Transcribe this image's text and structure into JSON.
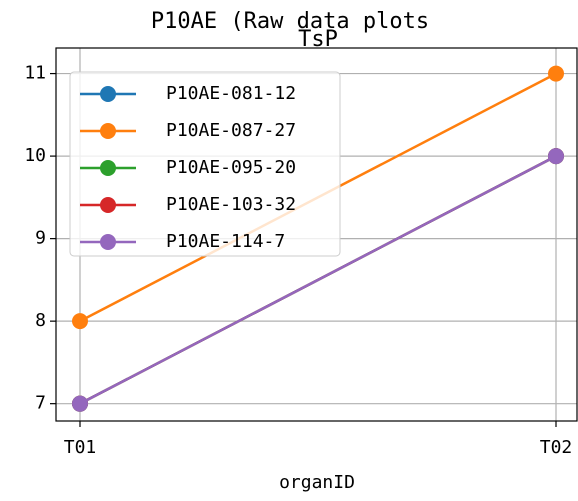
{
  "chart_data": {
    "type": "line",
    "title": "P10AE (Raw data plots",
    "subtitle": "TsP",
    "x_label": "organID",
    "categories": [
      "T01",
      "T02"
    ],
    "series": [
      {
        "name": "P10AE-081-12",
        "color": "#1f77b4",
        "values": [
          7,
          10
        ]
      },
      {
        "name": "P10AE-087-27",
        "color": "#ff7f0e",
        "values": [
          8,
          11
        ]
      },
      {
        "name": "P10AE-095-20",
        "color": "#2ca02c",
        "values": [
          7,
          10
        ]
      },
      {
        "name": "P10AE-103-32",
        "color": "#d62728",
        "values": [
          7,
          10
        ]
      },
      {
        "name": "P10AE-114-7",
        "color": "#9467bd",
        "values": [
          7,
          10
        ]
      }
    ],
    "ylim": [
      6.79,
      11.31
    ],
    "yticks": [
      7,
      8,
      9,
      10,
      11
    ],
    "grid": true,
    "legend": "upper left"
  }
}
